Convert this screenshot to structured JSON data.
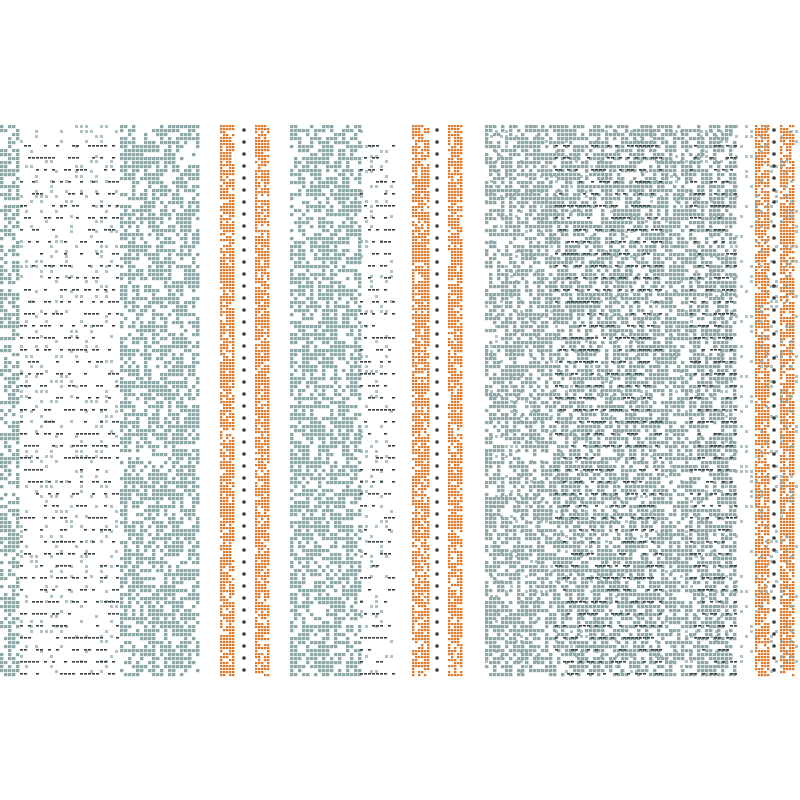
{
  "pattern": {
    "background_color": "#ffffff",
    "teal_color": "#8fa9a8",
    "orange_color": "#e0792a",
    "dark_thread_color": "#3a3f42",
    "stripe_sequence": [
      "teal",
      "teal",
      "orange",
      "orange",
      "teal",
      "orange",
      "orange",
      "teal",
      "orange",
      "orange"
    ]
  }
}
